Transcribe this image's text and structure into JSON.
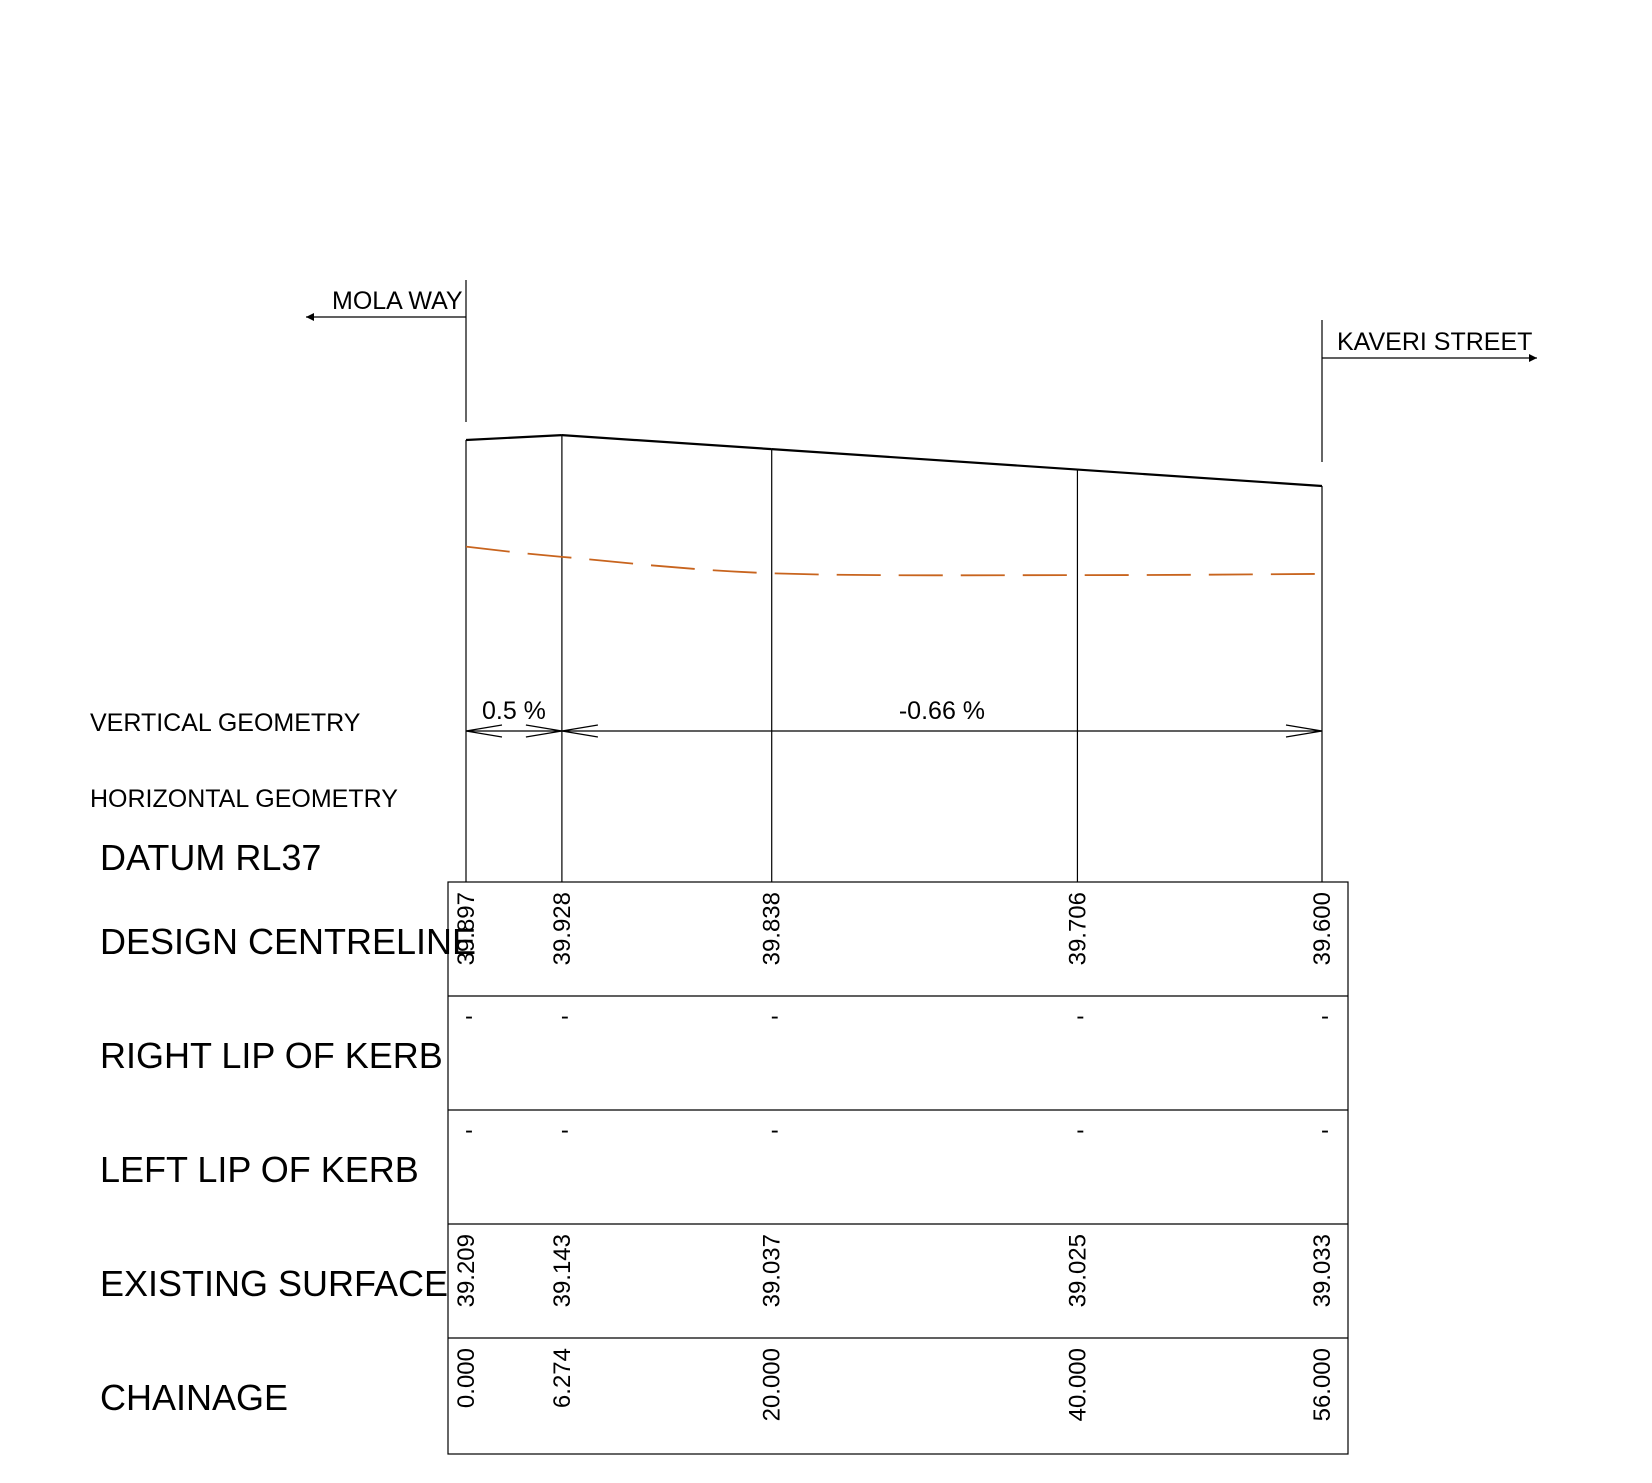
{
  "directions": {
    "left": "MOLA WAY",
    "right": "KAVERI STREET"
  },
  "row_labels": {
    "vertical_geometry": "VERTICAL GEOMETRY",
    "horizontal_geometry": "HORIZONTAL GEOMETRY",
    "datum": "DATUM RL37",
    "design_centreline": "DESIGN CENTRELINE",
    "right_lip_of_kerb": "RIGHT LIP OF KERB",
    "left_lip_of_kerb": "LEFT LIP OF KERB",
    "existing_surface": "EXISTING SURFACE",
    "chainage": "CHAINAGE"
  },
  "grades": [
    {
      "label": "0.5 %",
      "from_chainage": 0.0,
      "to_chainage": 6.274
    },
    {
      "label": "-0.66 %",
      "from_chainage": 6.274,
      "to_chainage": 56.0
    }
  ],
  "colors": {
    "line": "#000000",
    "existing_surface_line": "#c8641e"
  },
  "chart_data": {
    "type": "line",
    "datum": 37,
    "x": [
      0.0,
      6.274,
      20.0,
      40.0,
      56.0
    ],
    "series": [
      {
        "name": "DESIGN CENTRELINE",
        "values": [
          39.897,
          39.928,
          39.838,
          39.706,
          39.6
        ],
        "labels": [
          "39.897",
          "39.928",
          "39.838",
          "39.706",
          "39.600"
        ]
      },
      {
        "name": "EXISTING SURFACE",
        "values": [
          39.209,
          39.143,
          39.037,
          39.025,
          39.033
        ],
        "labels": [
          "39.209",
          "39.143",
          "39.037",
          "39.025",
          "39.033"
        ]
      }
    ],
    "chainage_labels": [
      "0.000",
      "6.274",
      "20.000",
      "40.000",
      "56.000"
    ],
    "right_lip_of_kerb": [
      "-",
      "-",
      "-",
      "-",
      "-"
    ],
    "left_lip_of_kerb": [
      "-",
      "-",
      "-",
      "-",
      "-"
    ]
  }
}
